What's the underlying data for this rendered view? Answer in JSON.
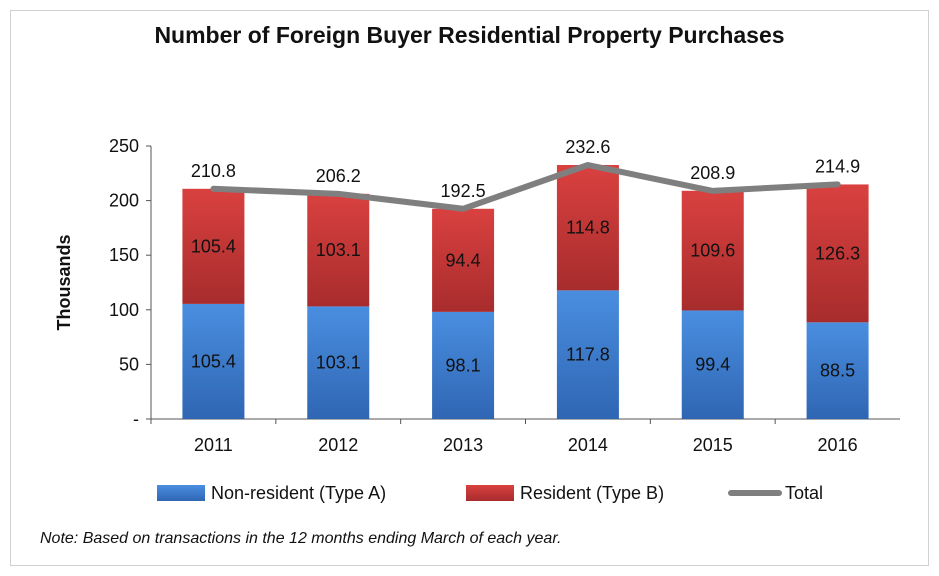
{
  "chart_data": {
    "type": "bar",
    "stacked": true,
    "title": "Number of Foreign Buyer Residential Property Purchases",
    "ylabel": "Thousands",
    "xlabel": "",
    "ylim": [
      0,
      250
    ],
    "yticks": [
      0,
      50,
      100,
      150,
      200,
      250
    ],
    "ytick_labels": [
      "-",
      "50",
      "100",
      "150",
      "200",
      "250"
    ],
    "categories": [
      "2011",
      "2012",
      "2013",
      "2014",
      "2015",
      "2016"
    ],
    "series": [
      {
        "name": "Non-resident (Type A)",
        "type": "bar",
        "color": "#3f7fd2",
        "values": [
          105.4,
          103.1,
          98.1,
          117.8,
          99.4,
          88.5
        ],
        "labels": [
          "105.4",
          "103.1",
          "98.1",
          "117.8",
          "99.4",
          "88.5"
        ]
      },
      {
        "name": "Resident (Type B)",
        "type": "bar",
        "color": "#c7393a",
        "values": [
          105.4,
          103.1,
          94.4,
          114.8,
          109.6,
          126.3
        ],
        "labels": [
          "105.4",
          "103.1",
          "94.4",
          "114.8",
          "109.6",
          "126.3"
        ]
      },
      {
        "name": "Total",
        "type": "line",
        "color": "#7f7f7f",
        "values": [
          210.8,
          206.2,
          192.5,
          232.6,
          208.9,
          214.9
        ],
        "labels": [
          "210.8",
          "206.2",
          "192.5",
          "232.6",
          "208.9",
          "214.9"
        ]
      }
    ],
    "grid": false,
    "legend_position": "bottom",
    "note": "Note: Based on transactions in the 12 months ending March of each year."
  }
}
